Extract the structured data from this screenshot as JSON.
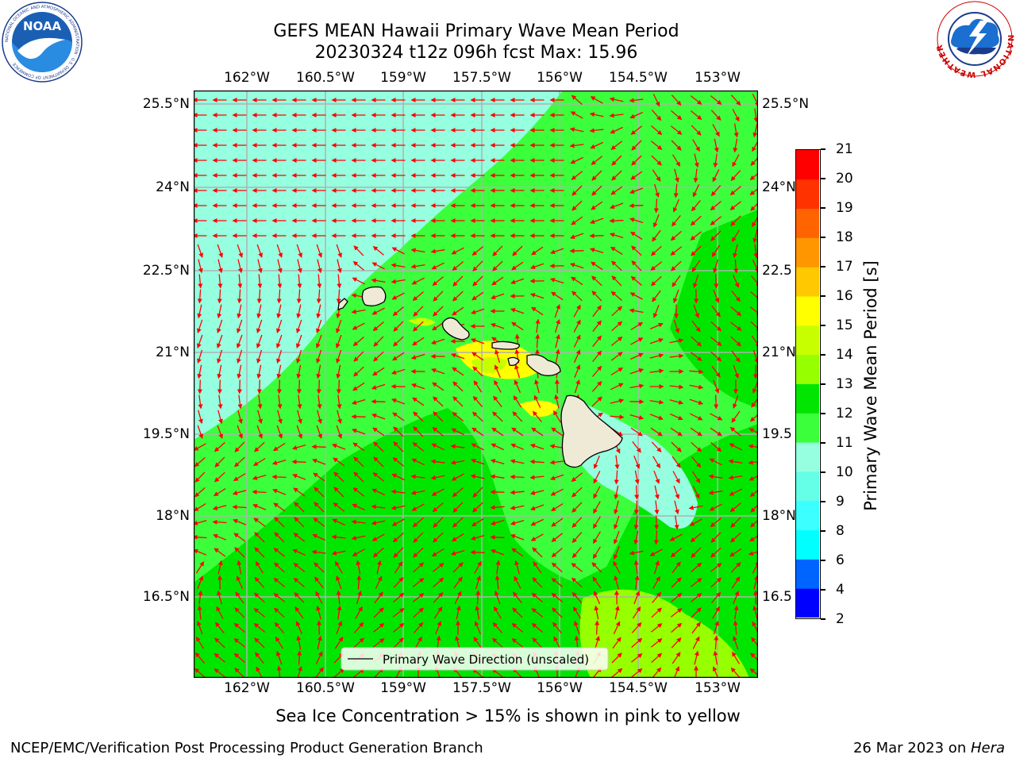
{
  "header": {
    "title_line1": "GEFS MEAN Hawaii Primary Wave Mean Period",
    "title_line2": "20230324 t12z 096h fcst   Max: 15.96"
  },
  "logos": {
    "noaa_text": "NOAA",
    "noaa_ring_text": "NATIONAL OCEANIC AND ATMOSPHERIC ADMINISTRATION · U.S. DEPARTMENT OF COMMERCE",
    "nws_ring_text": "NATIONAL WEATHER SERVICE"
  },
  "map": {
    "lon_ticks": [
      "162°W",
      "160.5°W",
      "159°W",
      "157.5°W",
      "156°W",
      "154.5°W",
      "153°W"
    ],
    "lat_ticks_left": [
      "25.5°N",
      "24°N",
      "22.5°N",
      "21°N",
      "19.5°N",
      "18°N",
      "16.5°N"
    ],
    "lat_ticks_right": [
      "25.5°N",
      "24°N",
      "22.5",
      "21°N",
      "19.5",
      "18°N",
      "16.5"
    ],
    "legend_label": "Primary Wave Direction (unscaled)",
    "arrow_color": "#ff0000",
    "grid_color": "#b0b0b0",
    "land_color": "#efead6"
  },
  "colorbar": {
    "label": "Primary Wave Mean Period [s]",
    "levels": [
      "2",
      "4",
      "6",
      "8",
      "9",
      "10",
      "11",
      "12",
      "13",
      "14",
      "15",
      "16",
      "17",
      "18",
      "19",
      "20",
      "21"
    ],
    "colors": [
      "#0000ff",
      "#0064ff",
      "#00ffff",
      "#3cffff",
      "#64ffe6",
      "#96ffe0",
      "#3cff3c",
      "#00e600",
      "#96ff00",
      "#c8ff00",
      "#ffff00",
      "#ffc800",
      "#ff9600",
      "#ff6400",
      "#ff3200",
      "#ff0000"
    ]
  },
  "chart_data": {
    "type": "heatmap",
    "field": "Primary Wave Mean Period",
    "units": "s",
    "max_value": 15.96,
    "lon_range_deg": [
      -163,
      -152.5
    ],
    "lat_range_deg": [
      15.0,
      25.7
    ],
    "value_range": [
      2,
      21
    ]
  },
  "captions": {
    "sea_ice_note": "Sea Ice Concentration > 15% is shown in pink to yellow",
    "footer_left": "NCEP/EMC/Verification Post Processing Product Generation Branch",
    "footer_right_date": "26 Mar 2023 on ",
    "footer_right_host": "Hera"
  }
}
